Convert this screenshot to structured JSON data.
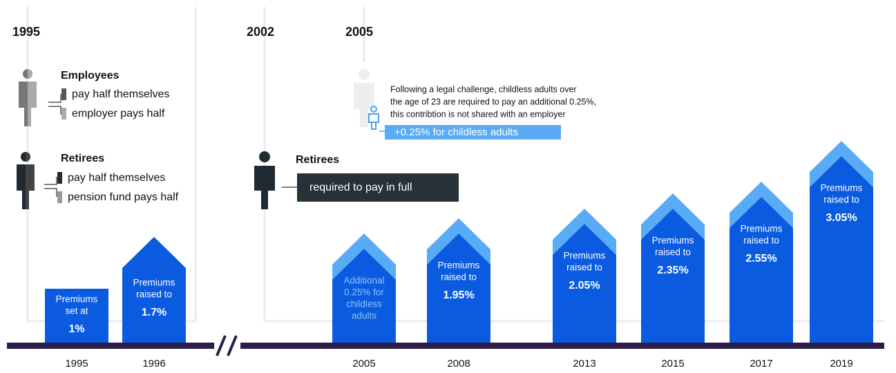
{
  "left_panel": {
    "year": "1995",
    "employees": {
      "title": "Employees",
      "lines": [
        "pay half themselves",
        "employer pays half"
      ]
    },
    "retirees": {
      "title": "Retirees",
      "lines": [
        "pay half themselves",
        "pension fund pays half"
      ]
    }
  },
  "mid_panel": {
    "year": "2002",
    "retirees": {
      "title": "Retirees",
      "lines": [
        "required to pay in full"
      ]
    }
  },
  "right_panel": {
    "year": "2005",
    "note": [
      "Following a legal challenge, childless adults over",
      "the age of 23 are required to pay an additional 0.25%,",
      "this contribtion is not shared with an employer"
    ],
    "badge": "+0.25% for childless adults"
  },
  "bars": [
    {
      "year": "1995",
      "lines": [
        "Premiums",
        "set at"
      ],
      "value": "1%"
    },
    {
      "year": "1996",
      "lines": [
        "Premiums",
        "raised to"
      ],
      "value": "1.7%"
    },
    {
      "year": "2005",
      "lines": [
        "Additional",
        "0.25% for",
        "childless",
        "adults"
      ]
    },
    {
      "year": "2008",
      "lines": [
        "Premiums",
        "raised to"
      ],
      "value": "1.95%"
    },
    {
      "year": "2013",
      "lines": [
        "Premiums",
        "raised to"
      ],
      "value": "2.05%"
    },
    {
      "year": "2015",
      "lines": [
        "Premiums",
        "raised to"
      ],
      "value": "2.35%"
    },
    {
      "year": "2017",
      "lines": [
        "Premiums",
        "raised to"
      ],
      "value": "2.55%"
    },
    {
      "year": "2019",
      "lines": [
        "Premiums",
        "raised to"
      ],
      "value": "3.05%"
    }
  ]
}
